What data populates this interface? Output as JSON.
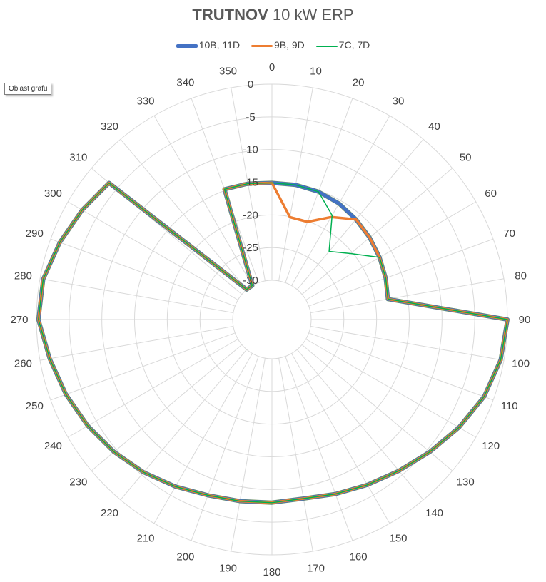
{
  "chart_data": {
    "type": "radar",
    "title_bold": "TRUTNOV",
    "title_rest": " 10 kW ERP",
    "tooltip": "Oblast grafu",
    "categories": [
      0,
      10,
      20,
      30,
      40,
      50,
      60,
      70,
      80,
      90,
      100,
      110,
      120,
      130,
      140,
      150,
      160,
      170,
      180,
      190,
      200,
      210,
      220,
      230,
      240,
      250,
      260,
      270,
      280,
      290,
      300,
      310,
      320,
      330,
      340,
      350
    ],
    "radial_axis": {
      "min": -30,
      "max": 0,
      "step": 5,
      "ticks": [
        "0",
        "-5",
        "-10",
        "-15",
        "-20",
        "-25",
        "-30"
      ]
    },
    "series": [
      {
        "name": "10B, 11D",
        "color": "#4472c4",
        "width": 5,
        "values": [
          -15.1,
          -15.1,
          -15.2,
          -15.5,
          -16.0,
          -16.5,
          -17.0,
          -17.5,
          -18.0,
          0,
          -0.5,
          -1.5,
          -3.0,
          -4.5,
          -5.8,
          -6.8,
          -7.6,
          -8.2,
          -8.0,
          -7.8,
          -7.4,
          -6.5,
          -5.5,
          -4.5,
          -3.5,
          -2.5,
          -1.5,
          -0.3,
          -0.5,
          -1.5,
          -2.5,
          -3.5,
          -30,
          -30,
          -14.8,
          -14.9
        ]
      },
      {
        "name": "9B, 9D",
        "color": "#ed7d31",
        "width": 3.5,
        "values": [
          -15.1,
          -20.1,
          -20.1,
          -17.9,
          -16.0,
          -16.5,
          -17.0,
          -17.5,
          -18.0,
          0,
          -0.5,
          -1.5,
          -3.0,
          -4.5,
          -5.8,
          -6.8,
          -7.6,
          -8.2,
          -8.0,
          -7.8,
          -7.4,
          -6.5,
          -5.5,
          -4.5,
          -3.5,
          -2.5,
          -1.5,
          -0.3,
          -0.5,
          -1.5,
          -2.5,
          -3.5,
          -30,
          -30,
          -14.8,
          -14.9
        ]
      },
      {
        "name": "7C, 7D",
        "color": "#00b050",
        "width": 1.5,
        "values": [
          -15.1,
          -15.1,
          -15.2,
          -17.6,
          -22.4,
          -20.3,
          -17.0,
          -17.5,
          -18.0,
          0,
          -0.5,
          -1.5,
          -3.0,
          -4.5,
          -5.8,
          -6.8,
          -7.6,
          -8.2,
          -8.0,
          -7.8,
          -7.4,
          -6.5,
          -5.5,
          -4.5,
          -3.5,
          -2.5,
          -1.5,
          -0.3,
          -0.5,
          -1.5,
          -2.5,
          -3.5,
          -30,
          -30,
          -14.8,
          -14.9
        ]
      }
    ]
  }
}
